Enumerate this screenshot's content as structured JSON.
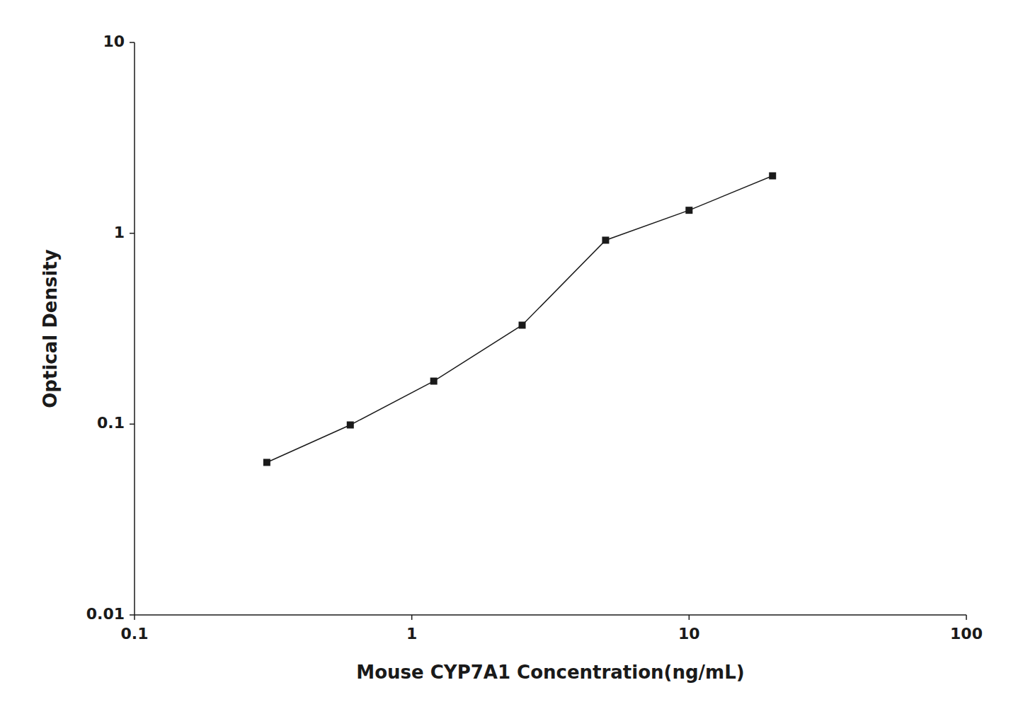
{
  "chart_data": {
    "type": "line",
    "x": [
      0.3,
      0.6,
      1.2,
      2.5,
      5.0,
      10.0,
      20.0
    ],
    "values": [
      0.063,
      0.099,
      0.168,
      0.33,
      0.92,
      1.32,
      2.0
    ],
    "xlabel": "Mouse CYP7A1 Concentration(ng/mL)",
    "ylabel": "Optical Density",
    "xlim": [
      0.1,
      100
    ],
    "ylim": [
      0.01,
      10
    ],
    "xticks": [
      0.1,
      1,
      10,
      100
    ],
    "yticks": [
      0.01,
      0.1,
      1,
      10
    ],
    "log": true,
    "grid": false,
    "color": "#1a1a1a",
    "marker": "square"
  }
}
